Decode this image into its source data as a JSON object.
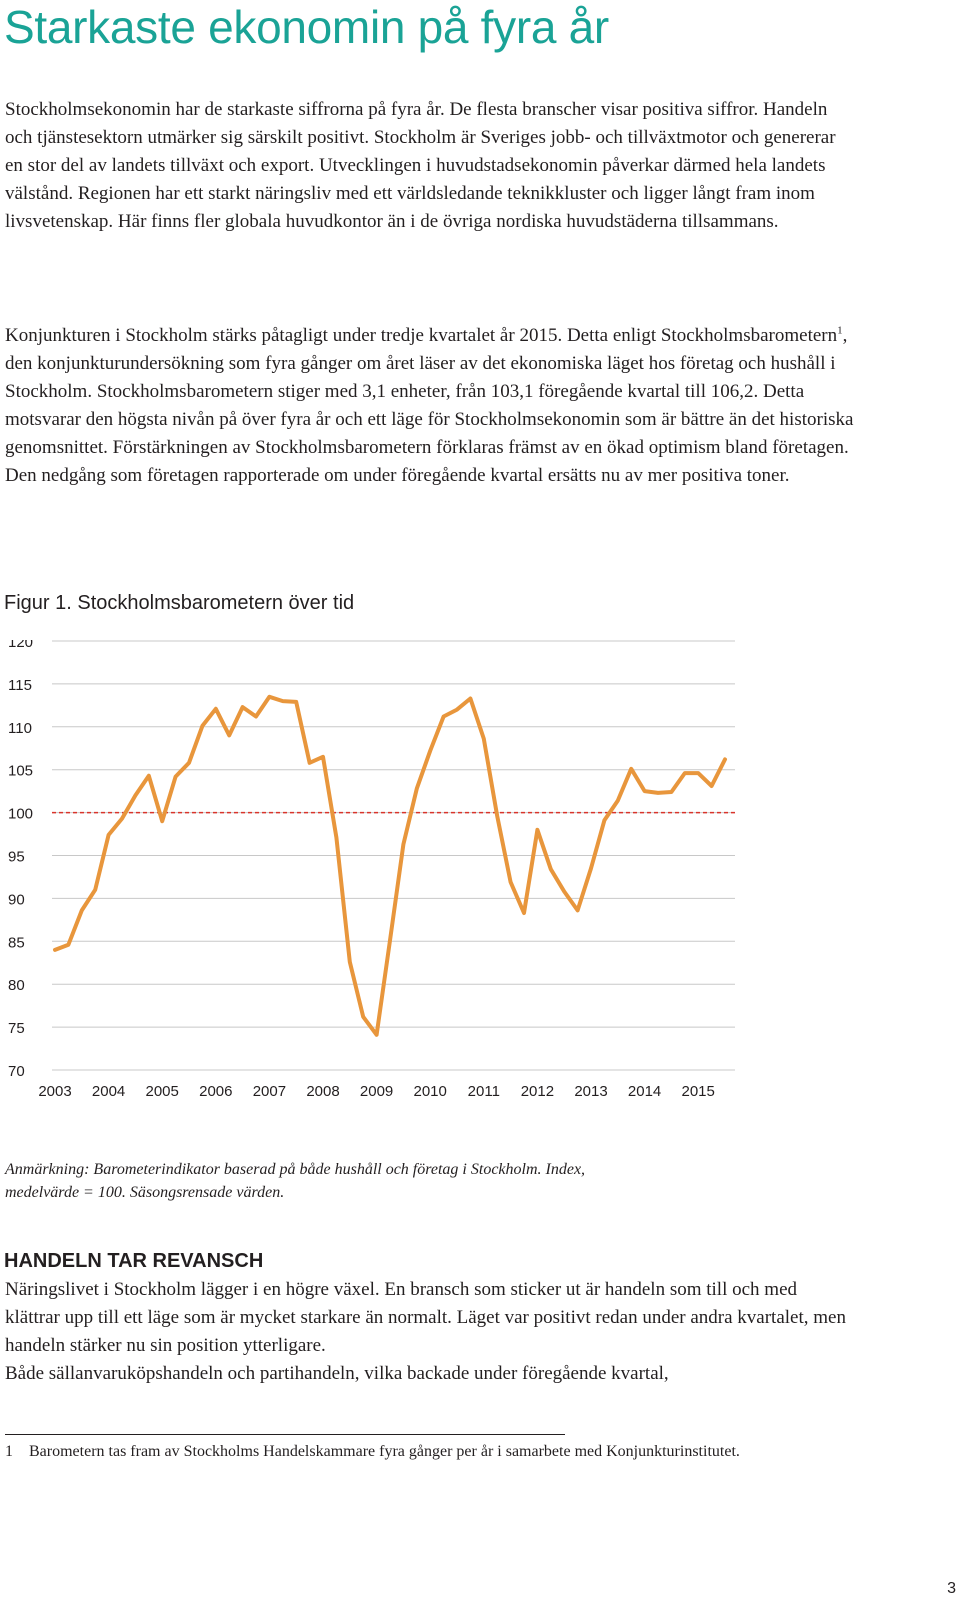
{
  "title": "Starkaste ekonomin på fyra år",
  "paragraph1": "Stockholmsekonomin har de starkaste siffrorna på fyra år. De flesta branscher visar positiva siffror. Handeln och tjänstesektorn utmärker sig särskilt positivt. Stockholm är Sveriges jobb- och tillväxtmotor och genererar en stor del av landets tillväxt och export. Utvecklingen i huvudstadsekonomin påverkar därmed hela landets välstånd. Regionen har ett starkt näringsliv med ett världsledande teknikkluster och ligger långt fram inom livsvetenskap. Här finns fler globala huvudkontor än i de övriga nordiska huvudstäderna tillsammans.",
  "paragraph2": {
    "before_ref": "Konjunkturen i Stockholm stärks påtagligt under tredje kvartalet år 2015. Detta enligt Stockholmsbarometern",
    "ref": "1",
    "after_ref": ", den konjunkturundersökning som fyra gånger om året läser av det ekonomiska läget hos företag och hushåll i Stockholm. Stockholmsbarometern stiger med 3,1 enheter, från 103,1 föregående kvartal till 106,2. Detta motsvarar den högsta nivån på över fyra år och ett läge för Stockholmsekonomin som är bättre än det historiska genomsnit­tet. Förstärkningen av Stockholmsbarometern förklaras främst av en ökad optimism bland företagen. Den nedgång som företagen rapporterade om under föregående kvartal ersätts nu av mer positiva toner."
  },
  "figure": {
    "title": "Figur 1. Stockholmsbarometern över tid",
    "note": "Anmärkning: Barometerindikator baserad på både hushåll och företag i Stockholm. Index, medelvärde = 100. Säsongsrensade värden."
  },
  "chart_data": {
    "type": "line",
    "title": "Figur 1. Stockholmsbarometern över tid",
    "xlabel": "",
    "ylabel": "",
    "ylim": [
      70,
      120
    ],
    "yticks": [
      "120",
      "115",
      "110",
      "105",
      "100",
      "95",
      "90",
      "85",
      "80",
      "75",
      "70"
    ],
    "xticks": [
      "2003",
      "2004",
      "2005",
      "2006",
      "2007",
      "2008",
      "2009",
      "2010",
      "2011",
      "2012",
      "2013",
      "2014",
      "2015"
    ],
    "grid": true,
    "reference_line": 100,
    "colors": {
      "line": "#e8963c",
      "reference": "#d9342b",
      "grid": "#c8c8c8"
    },
    "series": [
      {
        "x": [
          "2003 Q1",
          "2003 Q2",
          "2003 Q3",
          "2003 Q4",
          "2004 Q1",
          "2004 Q2",
          "2004 Q3",
          "2004 Q4",
          "2005 Q1",
          "2005 Q2",
          "2005 Q3",
          "2005 Q4",
          "2006 Q1",
          "2006 Q2",
          "2006 Q3",
          "2006 Q4",
          "2007 Q1",
          "2007 Q2",
          "2007 Q3",
          "2007 Q4",
          "2008 Q1",
          "2008 Q2",
          "2008 Q3",
          "2008 Q4",
          "2009 Q1",
          "2009 Q2",
          "2009 Q3",
          "2009 Q4",
          "2010 Q1",
          "2010 Q2",
          "2010 Q3",
          "2010 Q4",
          "2011 Q1",
          "2011 Q2",
          "2011 Q3",
          "2011 Q4",
          "2012 Q1",
          "2012 Q2",
          "2012 Q3",
          "2012 Q4",
          "2013 Q1",
          "2013 Q2",
          "2013 Q3",
          "2013 Q4",
          "2014 Q1",
          "2014 Q2",
          "2014 Q3",
          "2014 Q4",
          "2015 Q1",
          "2015 Q2",
          "2015 Q3"
        ],
        "values": [
          84.0,
          84.6,
          88.6,
          91.0,
          97.4,
          99.3,
          102.0,
          104.3,
          99.0,
          104.2,
          105.8,
          110.1,
          112.1,
          109.0,
          112.3,
          111.2,
          113.5,
          113.0,
          112.9,
          105.8,
          106.5,
          97.1,
          82.6,
          76.2,
          74.1,
          85.1,
          96.3,
          102.8,
          107.2,
          111.2,
          112.0,
          113.3,
          108.6,
          99.6,
          91.9,
          88.3,
          98.0,
          93.4,
          90.8,
          88.6,
          93.5,
          99.1,
          101.4,
          105.1,
          102.5,
          102.3,
          102.4,
          104.6,
          104.6,
          103.1,
          106.2
        ]
      }
    ]
  },
  "section_heading": "HANDELN TAR REVANSCH",
  "paragraph3": "Näringslivet i Stockholm lägger i en högre växel. En bransch som sticker ut är handeln som till och med klättrar upp till ett läge som är mycket starkare än normalt. Läget var positivt redan under andra kvartalet, men handeln stärker nu sin position ytterligare.\nBåde sällanvaruköpshandeln och partihandeln, vilka backade under föregående kvartal,",
  "footnote": {
    "number": "1",
    "text": "Barometern tas fram av Stockholms Handelskammare fyra gånger per år i samarbete med Konjunkturinstitutet."
  },
  "page_number": "3"
}
